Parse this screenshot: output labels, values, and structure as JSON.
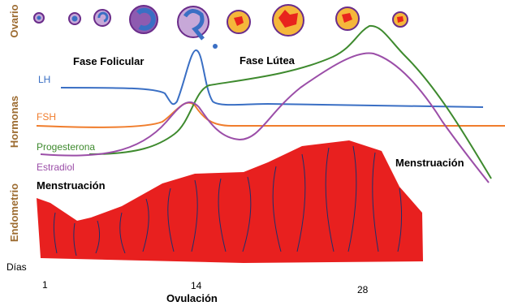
{
  "section_labels": [
    "Ovario",
    "Hormonas",
    "Endometrio"
  ],
  "phases": [
    "Fase Folicular",
    "Fase Lútea"
  ],
  "hormones": [
    "LH",
    "FSH",
    "Progesterona",
    "Estradiol"
  ],
  "menstruation": [
    "Menstruación",
    "Menstruación"
  ],
  "axis": {
    "label": "Días",
    "ticks": [
      "1",
      "14",
      "28"
    ],
    "ovulation": "Ovulación"
  }
}
